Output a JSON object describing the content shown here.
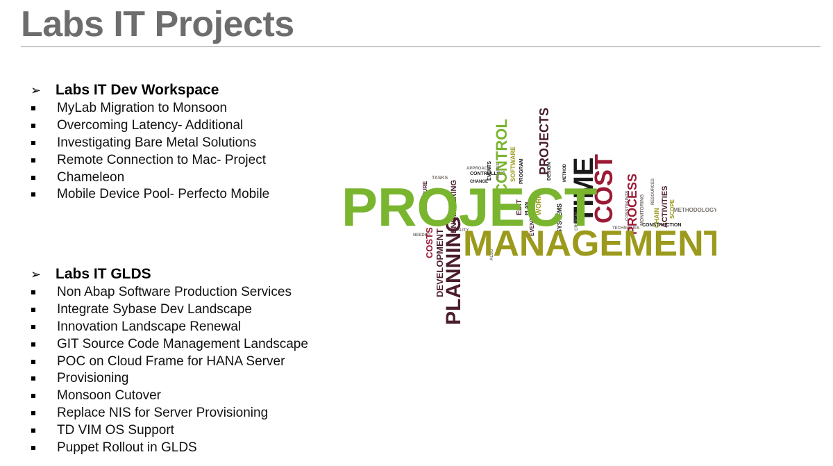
{
  "page": {
    "title": "Labs IT Projects"
  },
  "sections": [
    {
      "heading": "Labs IT Dev Workspace",
      "items": [
        "MyLab Migration to Monsoon",
        "Overcoming Latency- Additional",
        "Investigating Bare Metal Solutions",
        "Remote Connection to Mac- Project",
        "Chameleon",
        "Mobile Device Pool- Perfecto Mobile"
      ]
    },
    {
      "heading": "Labs IT GLDS",
      "items": [
        "Non Abap Software Production Services",
        "Integrate Sybase Dev Landscape",
        "Innovation Landscape Renewal",
        "GIT Source Code Management Landscape",
        "POC on Cloud Frame for HANA Server",
        "Provisioning",
        "Monsoon Cutover",
        "Replace NIS for Server Provisioning",
        "TD VIM OS Support",
        "Puppet Rollout in GLDS"
      ]
    }
  ],
  "word_cloud": {
    "colors": {
      "green": "#7ab52f",
      "olive": "#9c9a1c",
      "maroon": "#4a1d2c",
      "red": "#9b1b36",
      "black": "#1a1a1a",
      "gray": "#7a7470"
    },
    "words": {
      "project": "PROJECT",
      "management": "MANAGEMENT",
      "time": "TIME",
      "cost": "COST",
      "planning": "PLANNING",
      "control": "CONTROL",
      "projects": "PROJECTS",
      "process": "PROCESS",
      "development": "DEVELOPMENT",
      "costs": "COSTS",
      "activities": "ACTIVITIES",
      "engineering": "ENGINEERING",
      "software": "SOFTWARE",
      "systems": "SYSTEMS",
      "work": "WORK",
      "edit": "EDIT",
      "methodology": "METHODOLOGY",
      "construction": "CONSTRUCTION",
      "controlling": "CONTROLLING",
      "program": "PROGRAM",
      "design": "DESIGN",
      "event": "EVENT",
      "chain": "CHAIN",
      "tasks": "TASKS",
      "structure": "STRUCTURE",
      "quality": "QUALITY",
      "change": "CHANGE",
      "plan": "PLAN",
      "events": "EVENTS",
      "techniques": "TECHNIQUES",
      "method": "METHOD",
      "approach": "APPROACH",
      "needed": "NEEDED",
      "scope": "SCOPE",
      "critical": "CRITICAL",
      "monitoring": "MONITORING",
      "constraints": "CONSTRAINTS",
      "resources": "RESOURCES",
      "analysis": "ANALYSIS",
      "also": "ALSO"
    }
  }
}
